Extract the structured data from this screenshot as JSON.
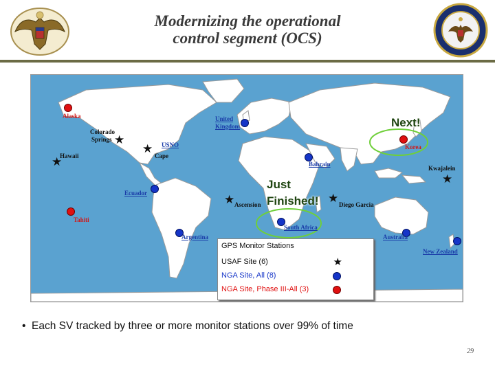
{
  "slide": {
    "title_line1": "Modernizing the operational",
    "title_line2": "control segment (OCS)",
    "bullet": "Each SV tracked by three or more monitor stations over 99% of time",
    "page_number": "29"
  },
  "map": {
    "callout_next": "Next!",
    "callout_just": "Just",
    "callout_finished": "Finished!",
    "labels": {
      "alaska": "Alaska",
      "colorado": "Colorado",
      "springs": "Springs",
      "hawaii": "Hawaii",
      "usno": "USNO",
      "cape": "Cape",
      "uk1": "United",
      "uk2": "Kingdom",
      "bahrain": "Bahrain",
      "korea": "Korea",
      "kwajalein": "Kwajalein",
      "ecuador": "Ecuador",
      "ascension": "Ascension",
      "diego": "Diego Garcia",
      "tahiti": "Tahiti",
      "south_africa": "South Africa",
      "argentina": "Argentina",
      "australia": "Australia",
      "new_zealand": "New Zealand"
    }
  },
  "legend": {
    "title": "GPS Monitor Stations",
    "usaf": "USAF Site (6)",
    "nga_all": "NGA Site, All (8)",
    "nga_phase": "NGA Site, Phase III-All (3)"
  },
  "colors": {
    "usaf": "#111111",
    "nga_all": "#1535c8",
    "nga_phase": "#e01010",
    "ocean": "#5aa2d0",
    "land": "#ffffff",
    "callout_ring": "#6fcf3a"
  },
  "icons": {
    "usaf": "star-icon",
    "nga_all": "blue-dot-icon",
    "nga_phase": "red-dot-icon"
  }
}
